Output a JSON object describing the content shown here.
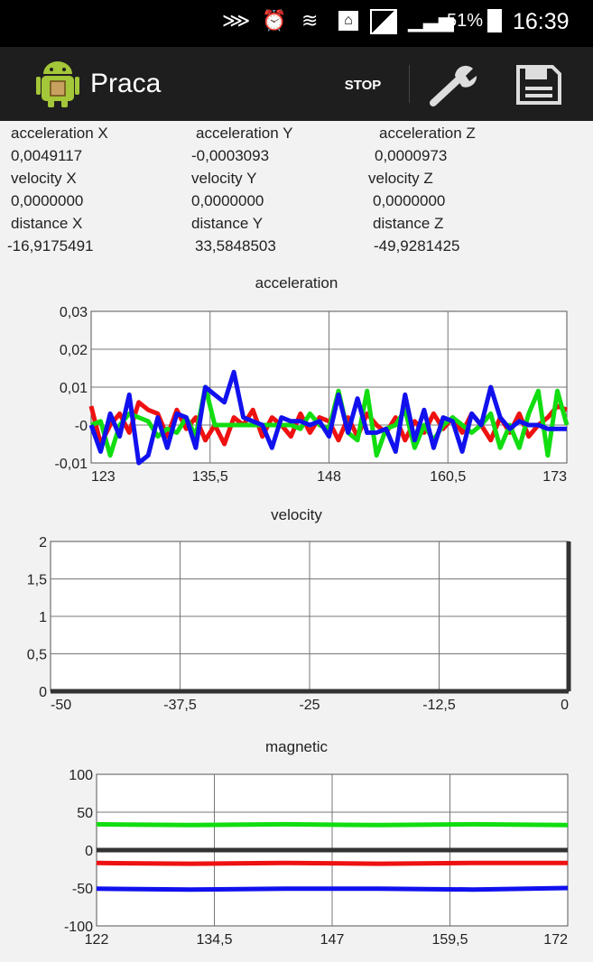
{
  "status_bar": {
    "battery": "51%",
    "time": "16:39"
  },
  "action_bar": {
    "title": "Praca",
    "stop_label": "STOP"
  },
  "readouts": {
    "accel": {
      "label_x": "acceleration X",
      "label_y": "acceleration Y",
      "label_z": "acceleration Z",
      "x": "0,0049117",
      "y": "-0,0003093",
      "z": "0,0000973"
    },
    "vel": {
      "label_x": "velocity X",
      "label_y": "velocity Y",
      "label_z": "velocity  Z",
      "x": "0,0000000",
      "y": "0,0000000",
      "z": "0,0000000"
    },
    "dist": {
      "label_x": "distance X",
      "label_y": "distance Y",
      "label_z": "distance Z",
      "x": "-16,9175491",
      "y": "33,5848503",
      "z": "-49,9281425"
    }
  },
  "colors": {
    "x": "#ee1111",
    "y": "#11dd11",
    "z": "#1111ee",
    "zero": "#333333"
  },
  "chart_data": [
    {
      "type": "line",
      "title": "acceleration",
      "xlim": [
        123,
        173
      ],
      "ylim": [
        -0.01,
        0.03
      ],
      "x_ticks": [
        "123",
        "135,5",
        "148",
        "160,5",
        "173"
      ],
      "y_ticks": [
        "-0,01",
        "-0",
        "0,01",
        "0,02",
        "0,03"
      ],
      "grid": true,
      "series": [
        {
          "color": "#ee1111",
          "x": [
            123,
            124,
            125,
            126,
            127,
            128,
            129,
            130,
            131,
            132,
            133,
            134,
            135,
            136,
            137,
            138,
            139,
            140,
            141,
            142,
            143,
            144,
            145,
            146,
            147,
            148,
            149,
            150,
            151,
            152,
            153,
            154,
            155,
            156,
            157,
            158,
            159,
            160,
            161,
            162,
            163,
            164,
            165,
            166,
            167,
            168,
            169,
            170,
            171,
            172,
            173
          ],
          "y": [
            0.005,
            -0.005,
            0,
            0.003,
            -0.002,
            0.006,
            0.004,
            0.003,
            -0.003,
            0.004,
            -0.001,
            0.002,
            -0.004,
            0,
            -0.005,
            0.002,
            0,
            0.004,
            -0.003,
            0.002,
            0,
            -0.003,
            0.003,
            -0.002,
            0.002,
            0.001,
            -0.004,
            0.002,
            -0.003,
            0.003,
            0,
            -0.002,
            0.002,
            -0.004,
            0.001,
            -0.002,
            0.003,
            -0.001,
            0.002,
            -0.002,
            0.003,
            0,
            -0.004,
            0.002,
            -0.002,
            0.003,
            -0.003,
            0,
            0.002,
            0.005,
            0.004
          ]
        },
        {
          "color": "#11dd11",
          "x": [
            123,
            124,
            125,
            126,
            127,
            128,
            129,
            130,
            131,
            132,
            133,
            134,
            135,
            136,
            137,
            138,
            139,
            140,
            141,
            142,
            143,
            144,
            145,
            146,
            147,
            148,
            149,
            150,
            151,
            152,
            153,
            154,
            155,
            156,
            157,
            158,
            159,
            160,
            161,
            162,
            163,
            164,
            165,
            166,
            167,
            168,
            169,
            170,
            171,
            172,
            173
          ],
          "y": [
            0,
            0.001,
            -0.008,
            0,
            0.003,
            0.002,
            0.001,
            -0.003,
            -0.001,
            -0.002,
            0.002,
            -0.003,
            0.01,
            0,
            0,
            0,
            0,
            0,
            0,
            0,
            0,
            0,
            -0.001,
            0.003,
            0,
            -0.001,
            0.009,
            -0.002,
            -0.004,
            0.009,
            -0.008,
            -0.001,
            0,
            0.004,
            -0.006,
            0,
            -0.004,
            0,
            0.002,
            0,
            -0.002,
            0,
            0.003,
            -0.006,
            0,
            -0.006,
            0.003,
            0.009,
            -0.008,
            0.009,
            0
          ]
        },
        {
          "color": "#1111ee",
          "x": [
            123,
            124,
            125,
            126,
            127,
            128,
            129,
            130,
            131,
            132,
            133,
            134,
            135,
            136,
            137,
            138,
            139,
            140,
            141,
            142,
            143,
            144,
            145,
            146,
            147,
            148,
            149,
            150,
            151,
            152,
            153,
            154,
            155,
            156,
            157,
            158,
            159,
            160,
            161,
            162,
            163,
            164,
            165,
            166,
            167,
            168,
            169,
            170,
            171,
            172,
            173
          ],
          "y": [
            0,
            -0.007,
            0.003,
            -0.003,
            0.008,
            -0.01,
            -0.008,
            0.002,
            -0.006,
            0.003,
            0.002,
            -0.006,
            0.01,
            0.008,
            0.006,
            0.014,
            0.002,
            0.001,
            0,
            -0.006,
            0.002,
            0.001,
            0.001,
            0,
            0.001,
            -0.003,
            0.008,
            -0.002,
            0.007,
            -0.002,
            -0.002,
            -0.001,
            -0.007,
            0.008,
            -0.004,
            0.004,
            -0.006,
            0.002,
            0.001,
            -0.007,
            0.003,
            0,
            0.01,
            0.002,
            -0.001,
            0.001,
            0,
            0,
            -0.001,
            -0.001,
            -0.001
          ]
        }
      ]
    },
    {
      "type": "line",
      "title": "velocity",
      "xlim": [
        -50,
        0
      ],
      "ylim": [
        0,
        2
      ],
      "x_ticks": [
        "-50",
        "-37,5",
        "-25",
        "-12,5",
        "0"
      ],
      "y_ticks": [
        "0",
        "0,5",
        "1",
        "1,5",
        "2"
      ],
      "grid": true,
      "series": [
        {
          "color": "#333333",
          "x": [
            -50,
            0
          ],
          "y": [
            0,
            0
          ]
        },
        {
          "color": "#333333",
          "x": [
            0,
            0
          ],
          "y": [
            0,
            2
          ]
        }
      ]
    },
    {
      "type": "line",
      "title": "magnetic",
      "xlim": [
        122,
        172
      ],
      "ylim": [
        -100,
        100
      ],
      "x_ticks": [
        "122",
        "134,5",
        "147",
        "159,5",
        "172"
      ],
      "y_ticks": [
        "-100",
        "-50",
        "0",
        "50",
        "100"
      ],
      "grid": true,
      "series": [
        {
          "color": "#11dd11",
          "x": [
            122,
            132,
            142,
            152,
            162,
            172
          ],
          "y": [
            34,
            33,
            34,
            33,
            34,
            33
          ]
        },
        {
          "color": "#333333",
          "x": [
            122,
            172
          ],
          "y": [
            0,
            0
          ]
        },
        {
          "color": "#ee1111",
          "x": [
            122,
            132,
            142,
            152,
            162,
            172
          ],
          "y": [
            -17,
            -18,
            -17,
            -18,
            -17,
            -17
          ]
        },
        {
          "color": "#1111ee",
          "x": [
            122,
            132,
            142,
            152,
            162,
            172
          ],
          "y": [
            -51,
            -52,
            -51,
            -51,
            -52,
            -50
          ]
        }
      ]
    }
  ]
}
